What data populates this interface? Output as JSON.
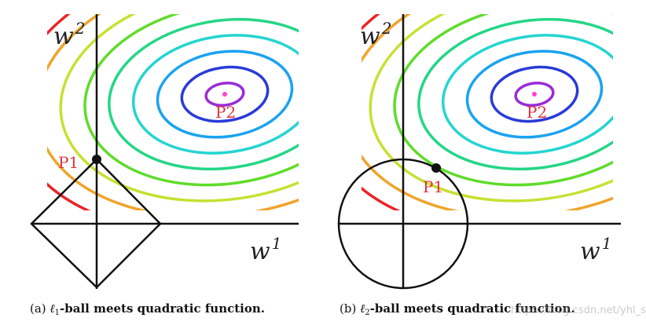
{
  "panels": [
    {
      "id": "a",
      "axis_x": {
        "main": "w",
        "sup": "1"
      },
      "axis_y": {
        "main": "w",
        "sup": "2"
      },
      "points": [
        {
          "label": "P1"
        },
        {
          "label": "P2"
        }
      ],
      "constraint_shape": "diamond",
      "caption": {
        "prefix": "(a) ",
        "ell": "ℓ",
        "sub": "1",
        "rest": "-ball meets quadratic function."
      }
    },
    {
      "id": "b",
      "axis_x": {
        "main": "w",
        "sup": "1"
      },
      "axis_y": {
        "main": "w",
        "sup": "2"
      },
      "points": [
        {
          "label": "P1"
        },
        {
          "label": "P2"
        }
      ],
      "constraint_shape": "circle",
      "caption": {
        "prefix": "(b) ",
        "ell": "ℓ",
        "sub": "2",
        "rest": "-ball meets quadratic function."
      }
    }
  ],
  "contour_colors": [
    "#9b2bd6",
    "#2a3bd8",
    "#1aa3f0",
    "#25d5d0",
    "#24d686",
    "#5fdc2a",
    "#c8e032",
    "#f0a42a",
    "#e82525"
  ],
  "center_marker_color": "#ff40d0",
  "watermark": "https://blog.csdn.net/yhl_sf"
}
